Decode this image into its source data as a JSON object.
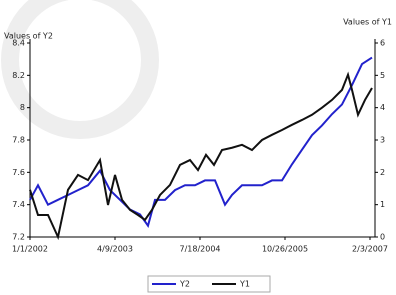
{
  "chart_data": {
    "type": "line",
    "y_label": "Values of Y2",
    "y2_label": "Values of Y1",
    "xlim": [
      0,
      345
    ],
    "xticks": [
      {
        "value": 0,
        "label": "1/1/2002"
      },
      {
        "value": 85,
        "label": "4/9/2003"
      },
      {
        "value": 170,
        "label": "7/18/2004"
      },
      {
        "value": 255,
        "label": "10/26/2005"
      },
      {
        "value": 340,
        "label": "2/3/2007"
      }
    ],
    "ylim": [
      7.2,
      8.4
    ],
    "yticks": [
      7.2,
      7.4,
      7.6,
      7.8,
      8.0,
      8.2,
      8.4
    ],
    "y2lim": [
      0,
      6
    ],
    "y2ticks": [
      0,
      1,
      2,
      3,
      4,
      5,
      6
    ],
    "legend": "bottom",
    "series": [
      {
        "name": "Y2",
        "color": "#2222cc",
        "x": [
          0,
          8,
          18,
          28,
          38,
          48,
          58,
          70,
          80,
          90,
          100,
          110,
          118,
          125,
          135,
          145,
          155,
          165,
          175,
          185,
          195,
          202,
          212,
          222,
          232,
          242,
          252,
          262,
          272,
          282,
          292,
          302,
          312,
          322,
          332,
          342
        ],
        "values": [
          7.43,
          7.52,
          7.4,
          7.43,
          7.46,
          7.49,
          7.52,
          7.61,
          7.49,
          7.43,
          7.37,
          7.34,
          7.27,
          7.43,
          7.43,
          7.49,
          7.52,
          7.52,
          7.55,
          7.55,
          7.4,
          7.46,
          7.52,
          7.52,
          7.52,
          7.55,
          7.55,
          7.65,
          7.74,
          7.83,
          7.89,
          7.96,
          8.02,
          8.14,
          8.27,
          8.31
        ]
      },
      {
        "name": "Y1",
        "color": "#111111",
        "axis": "y2",
        "x": [
          0,
          8,
          18,
          28,
          38,
          48,
          58,
          70,
          78,
          85,
          92,
          100,
          108,
          115,
          122,
          130,
          140,
          150,
          160,
          168,
          176,
          184,
          192,
          202,
          212,
          222,
          232,
          242,
          252,
          262,
          272,
          282,
          292,
          302,
          312,
          318,
          322,
          328,
          335,
          342
        ],
        "values": [
          1.46,
          0.68,
          0.68,
          0,
          1.46,
          1.92,
          1.76,
          2.38,
          0.99,
          1.92,
          1.15,
          0.84,
          0.68,
          0.53,
          0.84,
          1.3,
          1.61,
          2.23,
          2.38,
          2.07,
          2.54,
          2.23,
          2.69,
          2.76,
          2.85,
          2.69,
          3.0,
          3.16,
          3.31,
          3.47,
          3.62,
          3.78,
          4.0,
          4.24,
          4.55,
          5.02,
          4.55,
          3.78,
          4.24,
          4.61
        ]
      }
    ]
  }
}
